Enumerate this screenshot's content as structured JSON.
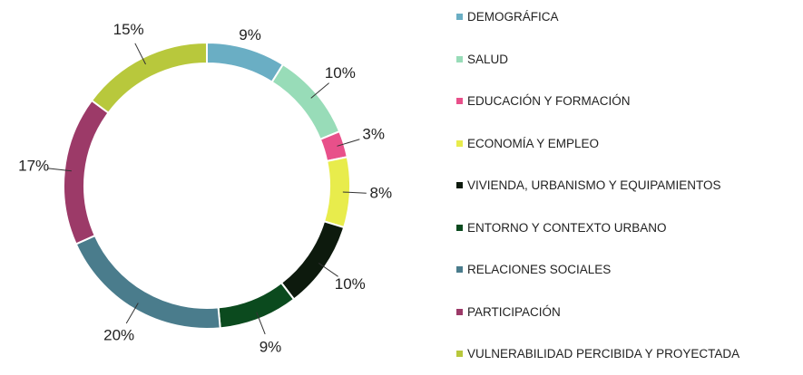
{
  "chart_data": {
    "type": "donut",
    "categories": [
      "DEMOGRÁFICA",
      "SALUD",
      "EDUCACIÓN Y FORMACIÓN",
      "ECONOMÍA Y EMPLEO",
      "VIVIENDA, URBANISMO Y EQUIPAMIENTOS",
      "ENTORNO Y CONTEXTO URBANO",
      "RELACIONES SOCIALES",
      "PARTICIPACIÓN",
      "VULNERABILIDAD PERCIBIDA Y PROYECTADA"
    ],
    "values": [
      9,
      10,
      3,
      8,
      10,
      9,
      20,
      17,
      15
    ],
    "value_labels": [
      "9%",
      "10%",
      "3%",
      "8%",
      "10%",
      "9%",
      "20%",
      "17%",
      "15%"
    ],
    "colors": [
      "#6aaec4",
      "#98dcb8",
      "#e8508a",
      "#e8ec4c",
      "#0d1a0d",
      "#0b4a1e",
      "#4a7c8c",
      "#9c3a68",
      "#b8c83c"
    ],
    "legend": "right"
  }
}
